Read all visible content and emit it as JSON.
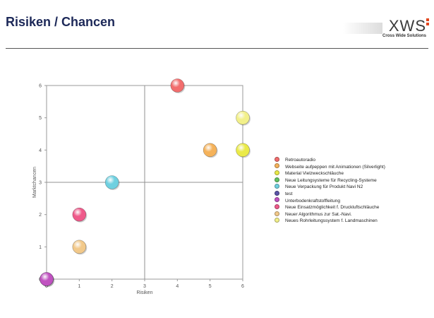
{
  "header": {
    "title": "Risiken / Chancen",
    "logo_text": "XWS",
    "logo_tagline": "Cross Wide Solutions"
  },
  "colors": {
    "title": "#1c2858",
    "grid": "#909090",
    "axis_text": "#555555"
  },
  "chart_data": {
    "type": "scatter",
    "xlabel": "Risiken",
    "ylabel": "Marktchancen",
    "xlim": [
      0,
      6
    ],
    "ylim": [
      0,
      6
    ],
    "xticks": [
      "0",
      "1",
      "2",
      "3",
      "4",
      "5",
      "6"
    ],
    "yticks": [
      "0",
      "1",
      "2",
      "3",
      "4",
      "5",
      "6"
    ],
    "legend_position": "right",
    "grid": "quadrant lines at x=3 and y=3",
    "series": [
      {
        "name": "Retroautoradio",
        "color": "#f26d6d",
        "x": 4,
        "y": 6
      },
      {
        "name": "Webseite aufpeppen mit Animationen (Silverlight)",
        "color": "#f5b25a",
        "x": 5,
        "y": 4
      },
      {
        "name": "Material Vielzweckschläuche",
        "color": "#eaea48",
        "x": 6,
        "y": 4
      },
      {
        "name": "Neue Leitungsysteme für Recycling-Systeme",
        "color": "#63c263",
        "x": null,
        "y": null
      },
      {
        "name": "Neue Verpackung für Produkt Navi N2",
        "color": "#6fd0e0",
        "x": 2,
        "y": 3
      },
      {
        "name": "test",
        "color": "#5b55a8",
        "x": 0,
        "y": 0
      },
      {
        "name": "Unterbodenkraftstoffleitung",
        "color": "#c052c0",
        "x": 0,
        "y": 0
      },
      {
        "name": "Neue Einsatzmöglichkeit f. Druckluftschläuche",
        "color": "#ef5a8a",
        "x": 1,
        "y": 2
      },
      {
        "name": "Neuer Algorithmus zur Sat.-Navi.",
        "color": "#f2c98a",
        "x": 1,
        "y": 1
      },
      {
        "name": "Neues Rohrleitungssystem f. Landmaschinen",
        "color": "#f2f08a",
        "x": 6,
        "y": 5
      }
    ]
  }
}
